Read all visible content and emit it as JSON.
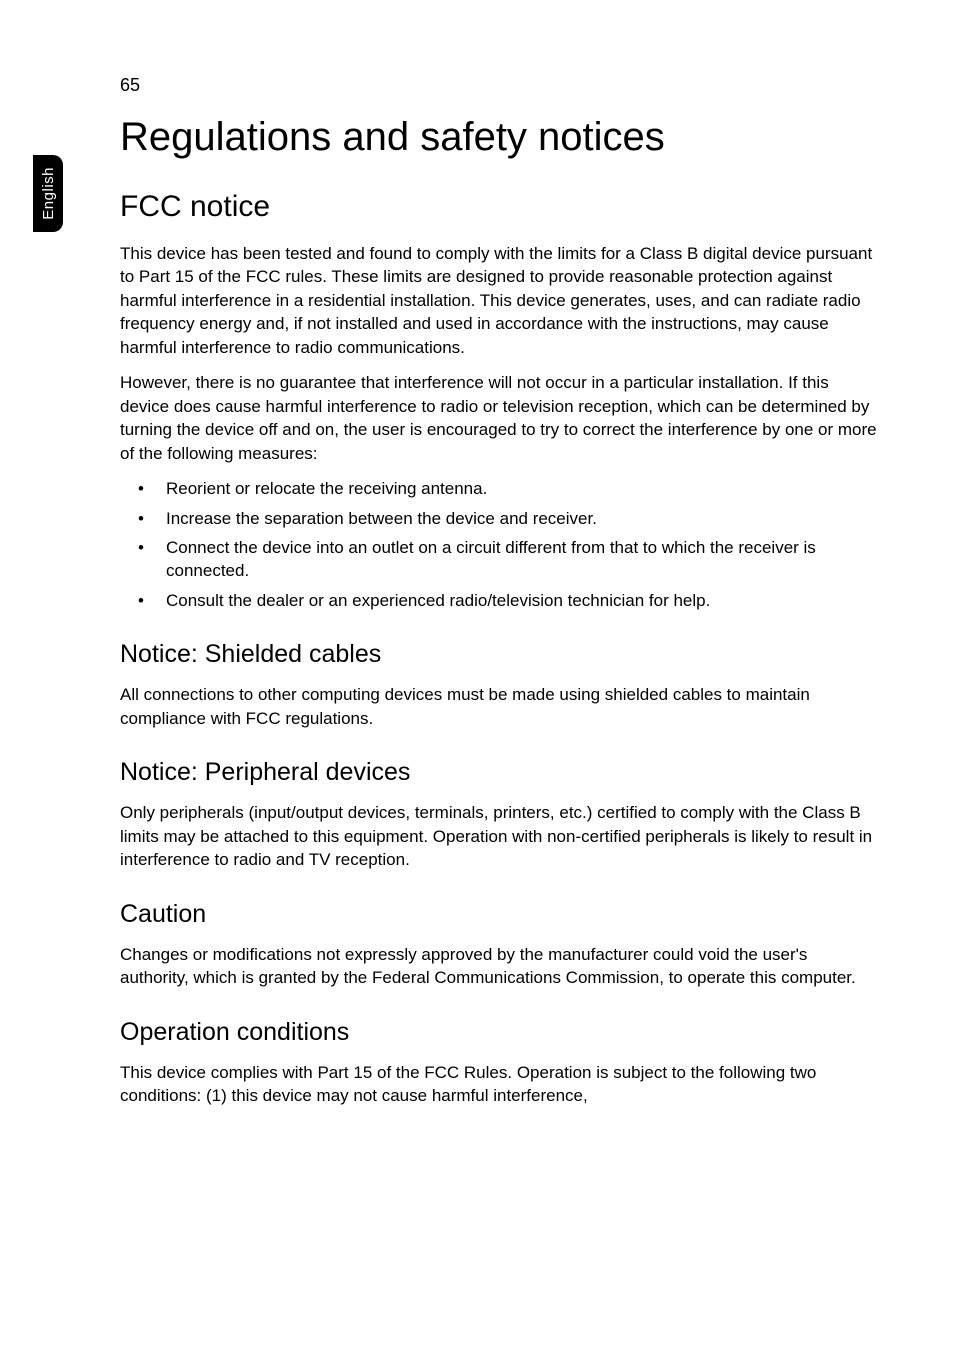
{
  "page_number": "65",
  "side_tab_label": "English",
  "h1": "Regulations and safety notices",
  "h2": "FCC notice",
  "p1": "This device has been tested and found to comply with the limits for a Class B digital device pursuant to Part 15 of the FCC rules. These limits are designed to provide reasonable protection against harmful interference in a residential installation. This device generates, uses, and can radiate radio frequency energy and, if not installed and used in accordance with the instructions, may cause harmful interference to radio communications.",
  "p2": "However, there is no guarantee that interference will not occur in a particular installation. If this device does cause harmful interference to radio or television reception, which can be determined by turning the device off and on, the user is encouraged to try to correct the interference by one or more of the following measures:",
  "bullets": [
    "Reorient or relocate the receiving antenna.",
    "Increase the separation between the device and receiver.",
    "Connect the device into an outlet on a circuit different from that to which the receiver is connected.",
    "Consult the dealer or an experienced radio/television technician for help."
  ],
  "sections": [
    {
      "heading": "Notice: Shielded cables",
      "body": "All connections to other computing devices must be made using shielded cables to maintain compliance with FCC regulations."
    },
    {
      "heading": "Notice: Peripheral devices",
      "body": "Only peripherals (input/output devices, terminals, printers, etc.) certified to comply with the Class B limits may be attached to this equipment. Operation with non-certified peripherals is likely to result in interference to radio and TV reception."
    },
    {
      "heading": "Caution",
      "body": "Changes or modifications not expressly approved by the manufacturer could void the user's authority, which is granted by the Federal Communications Commission, to operate this computer."
    },
    {
      "heading": "Operation conditions",
      "body": "This device complies with Part 15 of the FCC Rules. Operation is subject to the following two conditions: (1) this device may not cause harmful interference,"
    }
  ],
  "colors": {
    "background": "#ffffff",
    "text": "#000000",
    "tab_bg": "#000000",
    "tab_text": "#ffffff"
  },
  "typography": {
    "h1_size": 40,
    "h2_size": 30,
    "h3_size": 25,
    "body_size": 17,
    "font_family": "Verdana, Geneva, Tahoma, sans-serif"
  }
}
